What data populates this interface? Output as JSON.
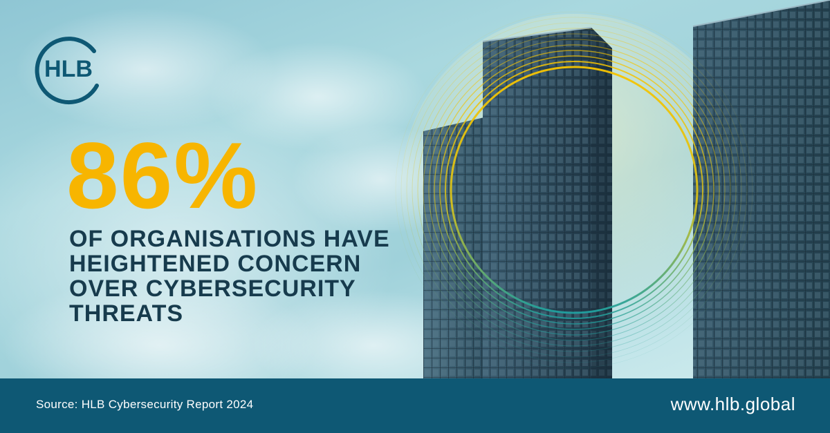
{
  "logo": {
    "text": "HLB",
    "ring_color": "#0e5874",
    "text_color": "#0e5874"
  },
  "stat": {
    "value": "86%",
    "color": "#f7b500"
  },
  "headline": {
    "lines": [
      "OF ORGANISATIONS HAVE",
      "HEIGHTENED CONCERN",
      "OVER CYBERSECURITY",
      "THREATS"
    ],
    "color": "#173b4d"
  },
  "footer": {
    "source": "Source: HLB Cybersecurity Report 2024",
    "url": "www.hlb.global",
    "background": "#0e5874"
  },
  "rings": {
    "colors": [
      "#f7c400",
      "#1fa0a0"
    ]
  }
}
